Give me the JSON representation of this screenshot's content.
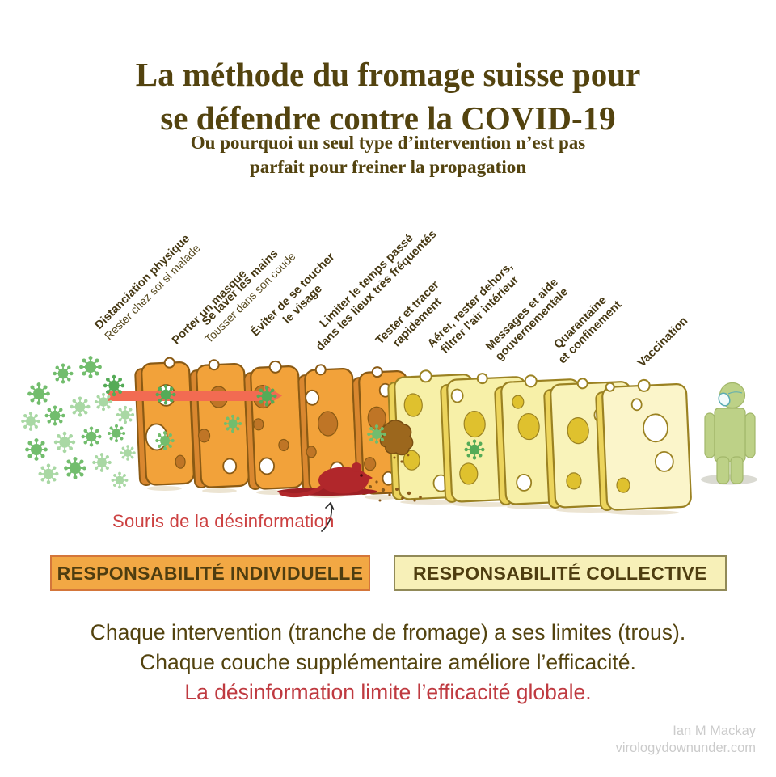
{
  "header": {
    "title_line1": "La méthode du fromage suisse pour",
    "title_line2": "se défendre contre la COVID-19",
    "subtitle_line1": "Ou pourquoi un seul type d’intervention n’est pas",
    "subtitle_line2": "parfait pour freiner la propagation"
  },
  "interventions": [
    {
      "line1": "Distanciation physique",
      "line2": "Rester chez soi si malade"
    },
    {
      "line1": "Porter un masque"
    },
    {
      "line1": "Se laver les mains",
      "line2": "Tousser dans son coude"
    },
    {
      "line1": "Éviter de se toucher",
      "line2": "le visage"
    },
    {
      "line1": "Limiter le temps passé",
      "line2": "dans les lieux très fréquentés"
    },
    {
      "line1": "Tester et tracer",
      "line2": "rapidement"
    },
    {
      "line1": "Aérer, rester dehors,",
      "line2": "filtrer l’air intérieur"
    },
    {
      "line1": "Messages et aide",
      "line2": "gouvernementale"
    },
    {
      "line1": "Quarantaine",
      "line2": "et confinement"
    },
    {
      "line1": "Vaccination"
    }
  ],
  "scene": {
    "mouse_caption": "Souris de la désinformation",
    "icons": [
      "virus-icon",
      "cheese-slice",
      "transmission-arrow",
      "misinformation-mouse-icon",
      "protected-person-icon",
      "bite-hole"
    ]
  },
  "banners": {
    "individual": "RESPONSABILITÉ INDIVIDUELLE",
    "collective": "RESPONSABILITÉ COLLECTIVE"
  },
  "footer": {
    "line1": "Chaque intervention (tranche de fromage) a ses limites (trous).",
    "line2": "Chaque couche supplémentaire améliore l’efficacité.",
    "line3": "La désinformation limite l’efficacité globale."
  },
  "credit": {
    "author": "Ian M Mackay",
    "site": "virologydownunder.com"
  },
  "palette": {
    "title_text": "#53430f",
    "orange_face": "#f2a23a",
    "orange_side": "#d9872f",
    "orange_stroke": "#8a5a14",
    "orange_hole": "#bf7526",
    "yellow_face_a": "#f7f0a8",
    "yellow_face_b": "#f9f3ba",
    "yellow_face_c": "#fbf5ca",
    "yellow_side": "#ecd45c",
    "yellow_stroke": "#9b8222",
    "yellow_hole": "#dfc12e",
    "arrow_red": "#f26b52",
    "virus_medium": "#72bd6d",
    "virus_light": "#a9d8a4",
    "virus_dark": "#55ab57",
    "mouse_red": "#b1272b",
    "mouse_pool": "#9e2025",
    "bite_brown": "#9c671d",
    "bite_edge": "#7a4e12",
    "crumb_brown": "#8a5a1a",
    "person_green": "#bdd187",
    "person_stroke": "#a2b76a",
    "mask_fill": "#f2fbfb",
    "mask_stroke": "#5aacb2",
    "banner_orange_bg": "#f2a844",
    "banner_orange_border": "#d4763a",
    "banner_yellow_bg": "#f7f0b8",
    "banner_yellow_border": "#918a58",
    "caption_red": "#cc4141",
    "footer_red": "#bf3a40",
    "credit_gray": "#cbcbcb",
    "slice_shadow": "#ece4d2"
  }
}
